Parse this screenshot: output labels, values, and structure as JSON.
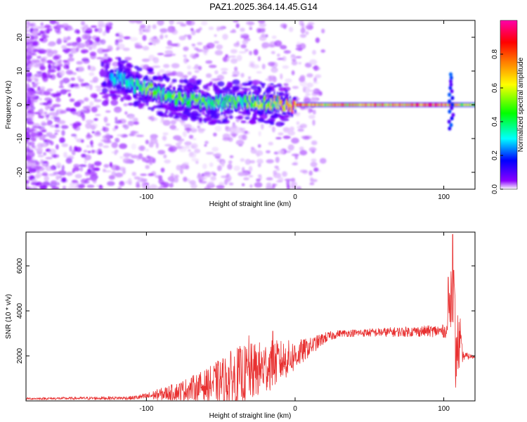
{
  "title": "PAZ1.2025.364.14.45.G14",
  "chart_data": [
    {
      "type": "heatmap",
      "name": "spectrogram",
      "xlabel": "Height of straight line (km)",
      "ylabel": "Frequency (Hz)",
      "xlim": [
        -181,
        121
      ],
      "ylim": [
        -25,
        25
      ],
      "xticks": [
        -100,
        0,
        100
      ],
      "yticks": [
        -20,
        -10,
        0,
        10,
        20
      ],
      "colorbar": {
        "label": "Normalized spectral amplitude",
        "range": [
          0,
          1
        ],
        "ticks": [
          "0.0",
          "0.2",
          "0.4",
          "0.6",
          "0.8"
        ],
        "tick_values": [
          0.0,
          0.2,
          0.4,
          0.6,
          0.8
        ],
        "colors": [
          "#ffffff",
          "#7a00ff",
          "#0000ff",
          "#00ffff",
          "#00ff00",
          "#ffff00",
          "#ff7f00",
          "#ff0000",
          "#ff00aa"
        ]
      },
      "ridge": [
        {
          "x": -120,
          "f": 8.0,
          "amp": 0.3
        },
        {
          "x": -110,
          "f": 6.0,
          "amp": 0.4
        },
        {
          "x": -100,
          "f": 5.0,
          "amp": 0.5
        },
        {
          "x": -90,
          "f": 3.0,
          "amp": 0.45
        },
        {
          "x": -80,
          "f": 2.0,
          "amp": 0.5
        },
        {
          "x": -70,
          "f": 1.5,
          "amp": 0.5
        },
        {
          "x": -55,
          "f": 0.5,
          "amp": 0.45
        },
        {
          "x": -40,
          "f": 1.0,
          "amp": 0.45
        },
        {
          "x": -20,
          "f": 0.5,
          "amp": 0.55
        },
        {
          "x": 0,
          "f": 0.0,
          "amp": 0.8
        },
        {
          "x": 20,
          "f": 0.0,
          "amp": 0.7
        },
        {
          "x": 60,
          "f": 0.0,
          "amp": 0.75
        },
        {
          "x": 100,
          "f": 0.0,
          "amp": 0.85
        },
        {
          "x": 110,
          "f": 0.0,
          "amp": 0.6
        },
        {
          "x": 121,
          "f": 0.0,
          "amp": 0.5
        }
      ]
    },
    {
      "type": "line",
      "name": "snr",
      "xlabel": "Height of straight line (km)",
      "ylabel": "SNR (10 * v/v)",
      "xlim": [
        -181,
        121
      ],
      "ylim": [
        0,
        7500
      ],
      "xticks": [
        -100,
        0,
        100
      ],
      "yticks": [
        2000,
        4000,
        6000
      ],
      "color": "#e83030",
      "envelope": [
        {
          "x": -181,
          "mean": 100,
          "amp": 50
        },
        {
          "x": -110,
          "mean": 130,
          "amp": 80
        },
        {
          "x": -100,
          "mean": 200,
          "amp": 150
        },
        {
          "x": -80,
          "mean": 400,
          "amp": 400
        },
        {
          "x": -60,
          "mean": 700,
          "amp": 700
        },
        {
          "x": -40,
          "mean": 1000,
          "amp": 1400
        },
        {
          "x": -20,
          "mean": 1500,
          "amp": 1200
        },
        {
          "x": 0,
          "mean": 2000,
          "amp": 700
        },
        {
          "x": 10,
          "mean": 2400,
          "amp": 400
        },
        {
          "x": 20,
          "mean": 2800,
          "amp": 250
        },
        {
          "x": 30,
          "mean": 3000,
          "amp": 150
        },
        {
          "x": 60,
          "mean": 3050,
          "amp": 200
        },
        {
          "x": 90,
          "mean": 3100,
          "amp": 250
        },
        {
          "x": 102,
          "mean": 3100,
          "amp": 300
        },
        {
          "x": 106,
          "mean": 5500,
          "amp": 2000
        },
        {
          "x": 108,
          "mean": 2500,
          "amp": 2000
        },
        {
          "x": 110,
          "mean": 2500,
          "amp": 1300
        },
        {
          "x": 113,
          "mean": 2000,
          "amp": 200
        },
        {
          "x": 121,
          "mean": 1950,
          "amp": 60
        }
      ],
      "peaks": [
        {
          "x": -31,
          "y": 2900
        },
        {
          "x": -15,
          "y": 3100
        },
        {
          "x": 103,
          "y": 5500
        },
        {
          "x": 106,
          "y": 7400
        },
        {
          "x": 108,
          "y": 600
        },
        {
          "x": 111,
          "y": 3650
        }
      ]
    }
  ]
}
